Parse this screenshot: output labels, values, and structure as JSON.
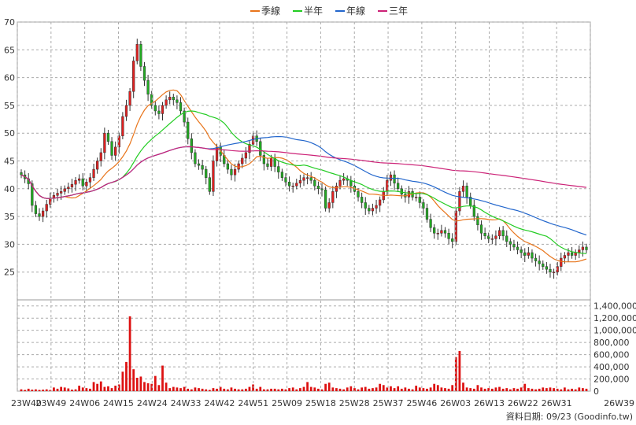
{
  "chart_data": {
    "type": "candlestick",
    "legend": [
      {
        "label": "季線",
        "color": "#e8741a"
      },
      {
        "label": "半年",
        "color": "#22cc22"
      },
      {
        "label": "年線",
        "color": "#2266cc"
      },
      {
        "label": "三年",
        "color": "#cc2277"
      }
    ],
    "price_axis": {
      "min": 20,
      "max": 70,
      "ticks": [
        25,
        30,
        35,
        40,
        45,
        50,
        55,
        60,
        65,
        70
      ]
    },
    "volume_axis": {
      "min": 0,
      "max": 1500000,
      "ticks": [
        0,
        200000,
        400000,
        600000,
        800000,
        1000000,
        1200000,
        1400000
      ],
      "tick_labels": [
        "0",
        "200,000",
        "400,000",
        "600,000",
        "800,000",
        "1,000,000",
        "1,200,000",
        "1,400,000"
      ]
    },
    "x_labels": [
      "23W40",
      "23W49",
      "24W06",
      "24W15",
      "24W24",
      "24W33",
      "24W42",
      "24W51",
      "25W09",
      "25W18",
      "25W28",
      "25W37",
      "25W46",
      "26W03",
      "26W13",
      "26W22",
      "26W31",
      "26W39"
    ],
    "grid": true,
    "weeks": 157,
    "first_week": "23W40",
    "closes": [
      42.5,
      41.8,
      40.9,
      37.0,
      35.5,
      35.0,
      36.0,
      37.2,
      38.3,
      38.8,
      39.2,
      39.5,
      40.0,
      40.3,
      40.8,
      41.5,
      41.8,
      40.5,
      41.2,
      42.0,
      43.5,
      45.0,
      46.5,
      50.0,
      48.5,
      46.0,
      47.5,
      49.5,
      53.0,
      55.0,
      57.5,
      63.0,
      66.0,
      62.0,
      59.5,
      57.0,
      55.0,
      54.0,
      53.5,
      55.0,
      56.0,
      56.5,
      56.0,
      55.5,
      54.0,
      52.0,
      49.0,
      46.5,
      44.5,
      44.2,
      43.5,
      42.0,
      39.5,
      45.0,
      47.5,
      46.0,
      44.5,
      43.5,
      42.5,
      43.5,
      44.5,
      45.5,
      46.5,
      48.0,
      49.5,
      48.5,
      46.0,
      44.5,
      44.0,
      45.5,
      44.0,
      43.0,
      42.0,
      41.2,
      40.5,
      40.5,
      41.0,
      41.5,
      42.0,
      42.0,
      41.5,
      40.5,
      40.0,
      39.8,
      36.5,
      37.5,
      39.5,
      40.5,
      41.5,
      41.8,
      41.5,
      40.5,
      39.5,
      38.5,
      37.5,
      36.5,
      36.0,
      36.5,
      37.0,
      38.0,
      39.5,
      41.5,
      42.5,
      41.0,
      40.0,
      39.0,
      38.5,
      39.5,
      38.5,
      38.5,
      37.5,
      36.5,
      34.5,
      33.0,
      32.0,
      32.0,
      32.5,
      32.0,
      31.0,
      30.5,
      36.0,
      39.5,
      40.5,
      38.5,
      37.0,
      35.0,
      33.5,
      32.0,
      31.5,
      31.0,
      31.0,
      31.5,
      32.5,
      31.5,
      30.5,
      30.0,
      29.5,
      29.0,
      28.5,
      28.0,
      28.5,
      27.5,
      27.0,
      26.5,
      26.0,
      25.5,
      25.0,
      25.0,
      26.0,
      27.5,
      28.0,
      28.5,
      28.0,
      28.5,
      29.0,
      29.5,
      29.0
    ],
    "volumes": [
      30000,
      20000,
      40000,
      25000,
      30000,
      20000,
      25000,
      30000,
      20000,
      60000,
      40000,
      70000,
      60000,
      45000,
      25000,
      30000,
      90000,
      60000,
      50000,
      40000,
      150000,
      120000,
      160000,
      70000,
      80000,
      50000,
      90000,
      110000,
      320000,
      480000,
      1230000,
      360000,
      220000,
      240000,
      150000,
      130000,
      120000,
      250000,
      100000,
      420000,
      140000,
      50000,
      70000,
      60000,
      50000,
      70000,
      40000,
      30000,
      60000,
      50000,
      40000,
      30000,
      20000,
      50000,
      40000,
      70000,
      40000,
      30000,
      60000,
      40000,
      30000,
      30000,
      40000,
      70000,
      110000,
      40000,
      70000,
      30000,
      30000,
      40000,
      40000,
      30000,
      40000,
      30000,
      50000,
      60000,
      30000,
      50000,
      70000,
      150000,
      70000,
      60000,
      40000,
      30000,
      120000,
      140000,
      60000,
      50000,
      40000,
      30000,
      60000,
      80000,
      50000,
      30000,
      60000,
      70000,
      40000,
      50000,
      60000,
      120000,
      100000,
      60000,
      80000,
      50000,
      80000,
      40000,
      60000,
      40000,
      30000,
      90000,
      60000,
      50000,
      40000,
      60000,
      120000,
      100000,
      60000,
      50000,
      40000,
      100000,
      560000,
      660000,
      140000,
      60000,
      50000,
      40000,
      100000,
      60000,
      40000,
      50000,
      40000,
      60000,
      70000,
      40000,
      50000,
      30000,
      50000,
      40000,
      60000,
      120000,
      50000,
      40000,
      30000,
      40000,
      60000,
      50000,
      60000,
      50000,
      40000,
      30000,
      60000,
      30000,
      40000,
      30000,
      60000,
      50000,
      40000
    ],
    "source_text": "資料日期: 09/23 (Goodinfo.tw)"
  }
}
